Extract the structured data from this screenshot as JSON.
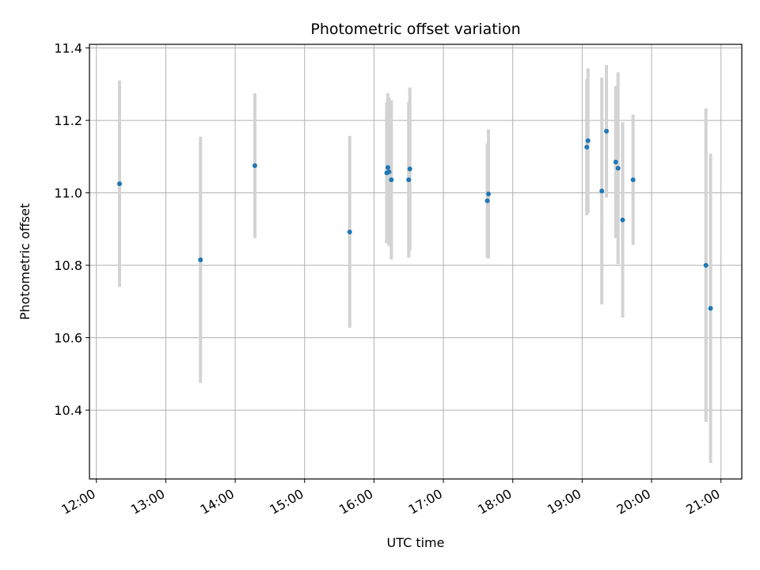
{
  "chart_data": {
    "type": "scatter",
    "title": "Photometric offset variation",
    "xlabel": "UTC time",
    "ylabel": "Photometric offset",
    "x_unit": "UTC time (HH:MM)",
    "xlim": [
      "11:54",
      "21:18"
    ],
    "ylim": [
      10.21,
      11.41
    ],
    "x_ticks": [
      "12:00",
      "13:00",
      "14:00",
      "15:00",
      "16:00",
      "17:00",
      "18:00",
      "19:00",
      "20:00",
      "21:00"
    ],
    "y_ticks": [
      10.4,
      10.6,
      10.8,
      11.0,
      11.2,
      11.4
    ],
    "y_tick_labels": [
      "10.4",
      "10.6",
      "10.8",
      "11.0",
      "11.2",
      "11.4"
    ],
    "grid": true,
    "legend": "none",
    "point_color": "#1f77b4",
    "errorbar_color": "#d3d3d3",
    "points": [
      {
        "x": "12:20",
        "y": 11.025,
        "err": 0.285
      },
      {
        "x": "13:30",
        "y": 10.815,
        "err": 0.34
      },
      {
        "x": "14:17",
        "y": 11.075,
        "err": 0.2
      },
      {
        "x": "15:39",
        "y": 10.892,
        "err": 0.265
      },
      {
        "x": "16:11",
        "y": 11.055,
        "err": 0.195
      },
      {
        "x": "16:12",
        "y": 11.07,
        "err": 0.205
      },
      {
        "x": "16:13",
        "y": 11.058,
        "err": 0.205
      },
      {
        "x": "16:15",
        "y": 11.036,
        "err": 0.22
      },
      {
        "x": "16:30",
        "y": 11.036,
        "err": 0.215
      },
      {
        "x": "16:31",
        "y": 11.066,
        "err": 0.225
      },
      {
        "x": "17:38",
        "y": 10.978,
        "err": 0.158
      },
      {
        "x": "17:39",
        "y": 10.997,
        "err": 0.178
      },
      {
        "x": "19:04",
        "y": 11.126,
        "err": 0.188
      },
      {
        "x": "19:05",
        "y": 11.144,
        "err": 0.2
      },
      {
        "x": "19:17",
        "y": 11.005,
        "err": 0.313
      },
      {
        "x": "19:21",
        "y": 11.17,
        "err": 0.183
      },
      {
        "x": "19:29",
        "y": 11.085,
        "err": 0.21
      },
      {
        "x": "19:31",
        "y": 11.068,
        "err": 0.265
      },
      {
        "x": "19:35",
        "y": 10.925,
        "err": 0.27
      },
      {
        "x": "19:44",
        "y": 11.036,
        "err": 0.18
      },
      {
        "x": "20:47",
        "y": 10.8,
        "err": 0.433
      },
      {
        "x": "20:51",
        "y": 10.681,
        "err": 0.427
      }
    ]
  }
}
